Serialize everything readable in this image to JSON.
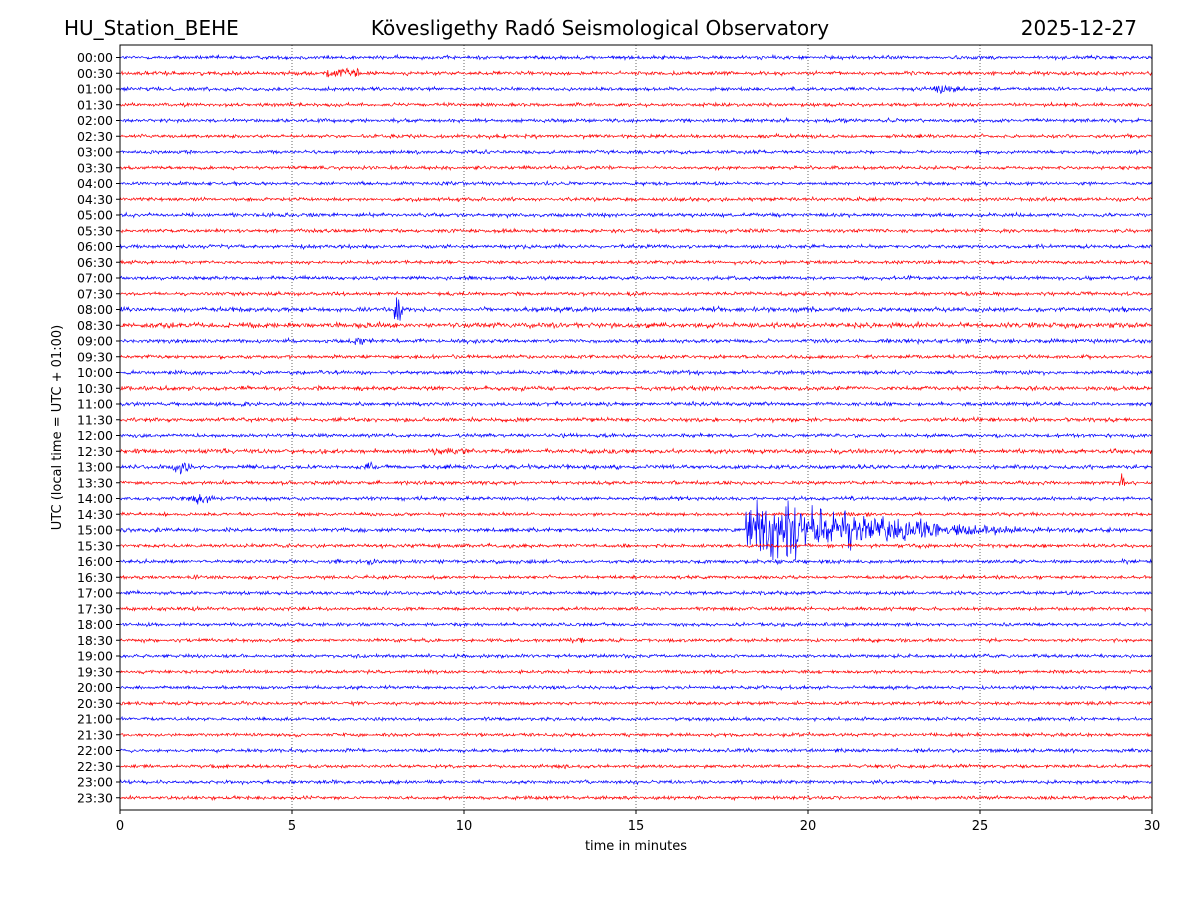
{
  "header": {
    "station": "HU_Station_BEHE",
    "observatory": "Kövesligethy Radó Seismological Observatory",
    "date": "2025-12-27"
  },
  "chart_data": {
    "type": "line",
    "title": "Kövesligethy Radó Seismological Observatory",
    "xlabel": "time in minutes",
    "ylabel": "UTC (local time = UTC + 01:00)",
    "xlim": [
      0,
      30
    ],
    "x_ticks": [
      "0",
      "5",
      "10",
      "15",
      "20",
      "25",
      "30"
    ],
    "grid": "vertical dotted lines at 5-minute ticks",
    "colors": [
      "#0000ff",
      "#ff0000"
    ],
    "row_labels": [
      "00:00",
      "00:30",
      "01:00",
      "01:30",
      "02:00",
      "02:30",
      "03:00",
      "03:30",
      "04:00",
      "04:30",
      "05:00",
      "05:30",
      "06:00",
      "06:30",
      "07:00",
      "07:30",
      "08:00",
      "08:30",
      "09:00",
      "09:30",
      "10:00",
      "10:30",
      "11:00",
      "11:30",
      "12:00",
      "12:30",
      "13:00",
      "13:30",
      "14:00",
      "14:30",
      "15:00",
      "15:30",
      "16:00",
      "16:30",
      "17:00",
      "17:30",
      "18:00",
      "18:30",
      "19:00",
      "19:30",
      "20:00",
      "20:30",
      "21:00",
      "21:30",
      "22:00",
      "22:30",
      "23:00",
      "23:30"
    ],
    "noise_amplitude": [
      1.6,
      1.6,
      1.6,
      1.5,
      1.6,
      1.6,
      1.5,
      1.5,
      1.5,
      1.6,
      1.6,
      1.6,
      1.6,
      1.5,
      1.6,
      1.6,
      2.0,
      2.2,
      1.7,
      1.6,
      1.7,
      1.8,
      1.6,
      1.7,
      1.6,
      1.9,
      1.8,
      1.6,
      1.6,
      1.5,
      1.7,
      1.6,
      1.6,
      1.5,
      1.6,
      1.5,
      1.5,
      1.5,
      1.5,
      1.5,
      1.5,
      1.5,
      1.5,
      1.5,
      1.5,
      1.5,
      1.5,
      1.5
    ],
    "events": [
      {
        "row": "00:30",
        "start_min": 5.6,
        "end_min": 7.4,
        "amplitude": 5
      },
      {
        "row": "01:00",
        "start_min": 23.2,
        "end_min": 24.8,
        "amplitude": 4
      },
      {
        "row": "08:00",
        "start_min": 7.9,
        "end_min": 8.3,
        "amplitude": 15
      },
      {
        "row": "09:00",
        "start_min": 6.6,
        "end_min": 7.2,
        "amplitude": 4
      },
      {
        "row": "12:30",
        "start_min": 9.0,
        "end_min": 15.5,
        "amplitude": 3
      },
      {
        "row": "13:00",
        "start_min": 1.4,
        "end_min": 2.2,
        "amplitude": 6
      },
      {
        "row": "13:00",
        "start_min": 7.0,
        "end_min": 7.6,
        "amplitude": 4
      },
      {
        "row": "13:30",
        "start_min": 29.0,
        "end_min": 29.3,
        "amplitude": 9
      },
      {
        "row": "14:00",
        "start_min": 1.8,
        "end_min": 3.0,
        "amplitude": 5
      },
      {
        "row": "15:00",
        "start_min": 18.2,
        "end_min": 28.0,
        "amplitude": 28
      },
      {
        "row": "16:00",
        "start_min": 7.1,
        "end_min": 7.5,
        "amplitude": 4
      },
      {
        "row": "18:30",
        "start_min": 13.0,
        "end_min": 13.6,
        "amplitude": 4
      }
    ]
  }
}
